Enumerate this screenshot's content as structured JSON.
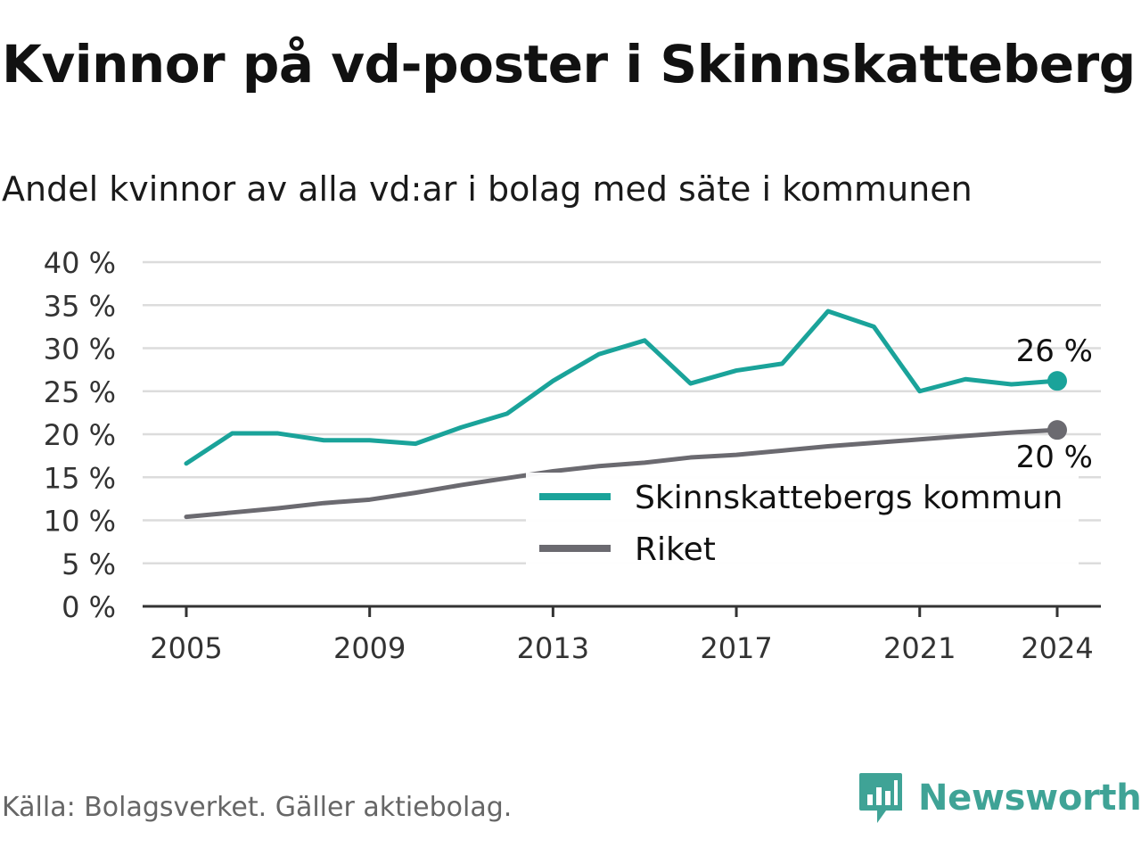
{
  "title": "Kvinnor på vd-poster i Skinnskatteberg",
  "subtitle": "Andel kvinnor av alla vd:ar i bolag med säte i kommunen",
  "source": "Källa: Bolagsverket. Gäller aktiebolag.",
  "brand": {
    "name": "Newsworthy",
    "color": "#3fa396"
  },
  "chart_data": {
    "type": "line",
    "x": [
      2005,
      2006,
      2007,
      2008,
      2009,
      2010,
      2011,
      2012,
      2013,
      2014,
      2015,
      2016,
      2017,
      2018,
      2019,
      2020,
      2021,
      2022,
      2023,
      2024
    ],
    "series": [
      {
        "name": "Skinnskattebergs kommun",
        "color": "#1aa39a",
        "values": [
          16.6,
          20.1,
          20.1,
          19.3,
          19.3,
          18.9,
          20.8,
          22.4,
          26.2,
          29.3,
          30.9,
          25.9,
          27.4,
          28.2,
          34.3,
          32.5,
          25.0,
          26.4,
          25.8,
          26.2
        ]
      },
      {
        "name": "Riket",
        "color": "#6b6a70",
        "values": [
          10.4,
          10.9,
          11.4,
          12.0,
          12.4,
          13.2,
          14.1,
          14.9,
          15.7,
          16.3,
          16.7,
          17.3,
          17.6,
          18.1,
          18.6,
          19.0,
          19.4,
          19.8,
          20.2,
          20.5
        ]
      }
    ],
    "end_labels": [
      "26 %",
      "20 %"
    ],
    "ylim": [
      0,
      40
    ],
    "y_ticks": [
      "0 %",
      "5 %",
      "10 %",
      "15 %",
      "20 %",
      "25 %",
      "30 %",
      "35 %",
      "40 %"
    ],
    "y_tick_values": [
      0,
      5,
      10,
      15,
      20,
      25,
      30,
      35,
      40
    ],
    "x_ticks": [
      "2005",
      "2009",
      "2013",
      "2017",
      "2021",
      "2024"
    ],
    "x_tick_values": [
      2005,
      2009,
      2013,
      2017,
      2021,
      2024
    ],
    "grid": true,
    "legend": "bottom-right"
  }
}
